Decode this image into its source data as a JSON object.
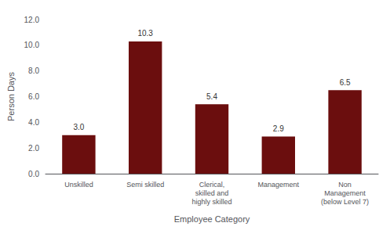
{
  "chart_data": {
    "type": "bar",
    "categories": [
      "Unskilled",
      "Semi skilled",
      "Clerical,\nskilled and\nhighly skilled",
      "Management",
      "Non\nManagement\n(below Level 7)"
    ],
    "values": [
      3.0,
      10.3,
      5.4,
      2.9,
      6.5
    ],
    "value_labels": [
      "3.0",
      "10.3",
      "5.4",
      "2.9",
      "6.5"
    ],
    "data_labels": true,
    "color": "#6B0E0E",
    "xlabel": "Employee Category",
    "ylabel": "Person Days",
    "ylim": [
      0,
      12.0
    ],
    "yticks": [
      {
        "value": 0,
        "label": "0.0"
      },
      {
        "value": 2,
        "label": "2.0"
      },
      {
        "value": 4,
        "label": "4.0"
      },
      {
        "value": 6,
        "label": "6.0"
      },
      {
        "value": 8,
        "label": "8.0"
      },
      {
        "value": 10,
        "label": "10.0"
      },
      {
        "value": 12,
        "label": "12.0"
      }
    ],
    "grid": false
  }
}
